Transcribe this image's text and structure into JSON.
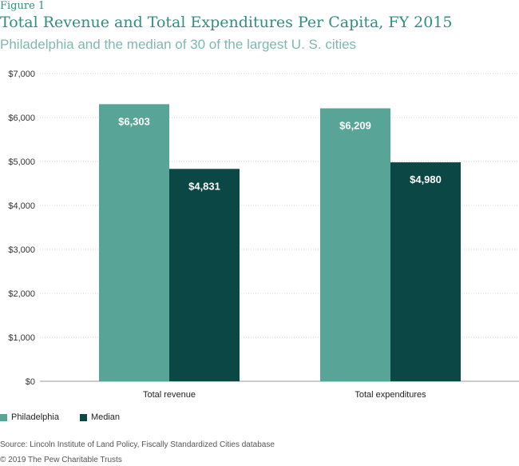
{
  "figure_label": "Figure 1",
  "chart_data": {
    "type": "bar",
    "title": "Total Revenue and Total Expenditures Per Capita, FY 2015",
    "subtitle": "Philadelphia and the median of 30 of the largest U. S. cities",
    "categories": [
      "Total revenue",
      "Total expenditures"
    ],
    "series": [
      {
        "name": "Philadelphia",
        "values": [
          6303,
          6209
        ],
        "labels": [
          "$6,303",
          "$6,209"
        ],
        "color": "#58a597"
      },
      {
        "name": "Median",
        "values": [
          4831,
          4980
        ],
        "labels": [
          "$4,831",
          "$4,980"
        ],
        "color": "#0b4744"
      }
    ],
    "ylim": [
      0,
      7000
    ],
    "yticks": [
      0,
      1000,
      2000,
      3000,
      4000,
      5000,
      6000,
      7000
    ],
    "ytick_labels": [
      "$0",
      "$1,000",
      "$2,000",
      "$3,000",
      "$4,000",
      "$5,000",
      "$6,000",
      "$7,000"
    ],
    "grid": true,
    "legend_position": "bottom-left"
  },
  "source": "Source: Lincoln Institute of Land Policy, Fiscally Standardized Cities database",
  "copyright": "© 2019 The Pew Charitable Trusts"
}
